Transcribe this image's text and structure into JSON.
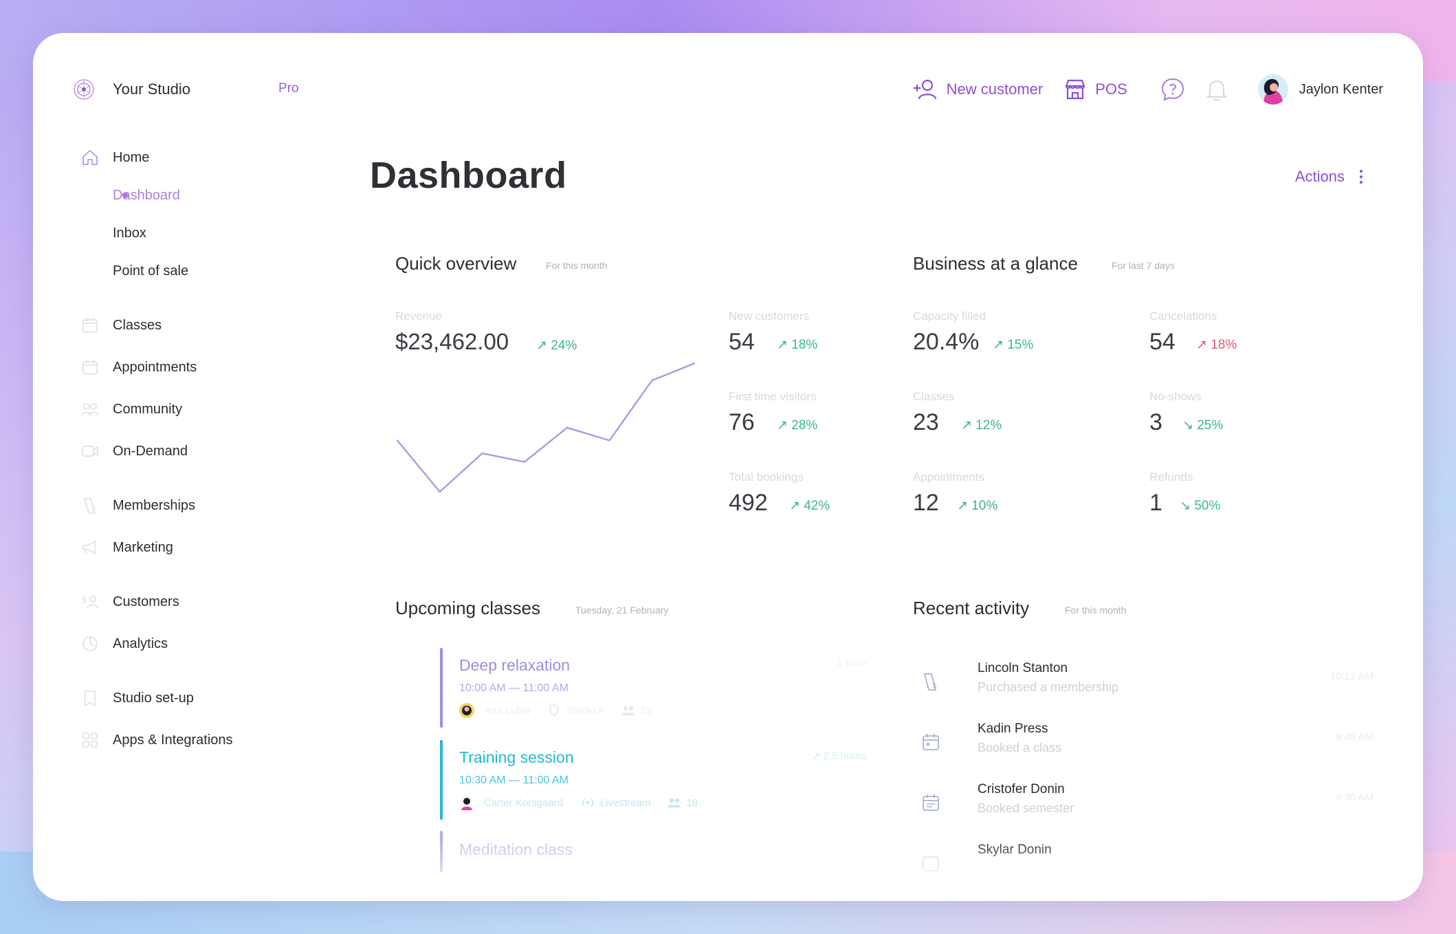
{
  "app": {
    "brand_name": "Your Studio",
    "plan_badge": "Pro",
    "brand_icon": "studio-logo-icon"
  },
  "topbar": {
    "new_customer_label": "New customer",
    "pos_label": "POS",
    "help_icon": "help-chat-icon",
    "bell_icon": "bell-icon",
    "user_name": "Jaylon Kenter"
  },
  "sidebar": {
    "items": [
      {
        "label": "Home",
        "icon": "home-icon"
      },
      {
        "label": "Dashboard",
        "active": true
      },
      {
        "label": "Inbox"
      },
      {
        "label": "Point of sale"
      },
      {
        "label": "Classes",
        "icon": "calendar-icon"
      },
      {
        "label": "Appointments",
        "icon": "calendar-icon"
      },
      {
        "label": "Community",
        "icon": "people-icon"
      },
      {
        "label": "On-Demand",
        "icon": "video-icon"
      },
      {
        "label": "Memberships",
        "icon": "membership-icon"
      },
      {
        "label": "Marketing",
        "icon": "megaphone-icon"
      },
      {
        "label": "Customers",
        "icon": "customers-icon"
      },
      {
        "label": "Analytics",
        "icon": "pie-chart-icon"
      },
      {
        "label": "Studio set-up",
        "icon": "bookmark-icon"
      },
      {
        "label": "Apps & Integrations",
        "icon": "apps-icon"
      }
    ]
  },
  "main": {
    "title": "Dashboard",
    "actions_label": "Actions",
    "quick_overview": {
      "title": "Quick overview",
      "subtitle": "For this month",
      "revenue_label": "Revenue",
      "revenue_value": "$23,462.00",
      "revenue_change": "↗ 24%",
      "metrics": [
        {
          "label": "New customers",
          "value": "54",
          "change": "↗ 18%"
        },
        {
          "label": "First time visitors",
          "value": "76",
          "change": "↗ 28%"
        },
        {
          "label": "Total bookings",
          "value": "492",
          "change": "↗ 42%"
        }
      ]
    },
    "business": {
      "title": "Business at a glance",
      "subtitle": "For last 7 days",
      "metrics_left": [
        {
          "label": "Capacity filled",
          "value": "20.4%",
          "change": "↗ 15%"
        },
        {
          "label": "Classes",
          "value": "23",
          "change": "↗ 12%"
        },
        {
          "label": "Appointments",
          "value": "12",
          "change": "↗ 10%"
        }
      ],
      "metrics_right": [
        {
          "label": "Cancelations",
          "value": "54",
          "change": "↗ 18%"
        },
        {
          "label": "No-shows",
          "value": "3",
          "change": "↘ 25%"
        },
        {
          "label": "Refunds",
          "value": "1",
          "change": "↘ 50%"
        }
      ]
    },
    "upcoming": {
      "title": "Upcoming classes",
      "subtitle": "Tuesday, 21 February",
      "classes": [
        {
          "name": "Deep relaxation",
          "time": "10:00 AM — 11:00 AM",
          "duration": "1 hour",
          "instructor": "Ana Lubin",
          "location": "Studio A",
          "capacity": "12",
          "color": "#9b8fe0"
        },
        {
          "name": "Training session",
          "time": "10:30 AM — 11:00 AM",
          "duration": "↗ 2.5 hours",
          "instructor": "Carter Korsgaard",
          "location": "Livestream",
          "capacity": "18",
          "color": "#22b8d4"
        },
        {
          "name": "Meditation class",
          "color": "#b6b0e6"
        }
      ]
    },
    "activity": {
      "title": "Recent activity",
      "subtitle": "For this month",
      "items": [
        {
          "name": "Lincoln Stanton",
          "desc": "Purchased a membership",
          "time": "10:12 AM",
          "icon": "membership-icon"
        },
        {
          "name": "Kadin Press",
          "desc": "Booked a class",
          "time": "9:48 AM",
          "icon": "calendar-icon"
        },
        {
          "name": "Cristofer Donin",
          "desc": "Booked semester",
          "time": "9:30 AM",
          "icon": "calendar-icon"
        },
        {
          "name": "Skylar Donin",
          "desc": "",
          "time": "",
          "icon": "calendar-icon"
        }
      ]
    }
  },
  "chart_data": {
    "type": "line",
    "x": [
      0,
      1,
      2,
      3,
      4,
      5,
      6,
      7
    ],
    "values": [
      8,
      2,
      6.5,
      5.5,
      9.5,
      8,
      15,
      17
    ],
    "ylim": [
      0,
      18
    ],
    "color": "#a99ae6",
    "grid": false
  }
}
